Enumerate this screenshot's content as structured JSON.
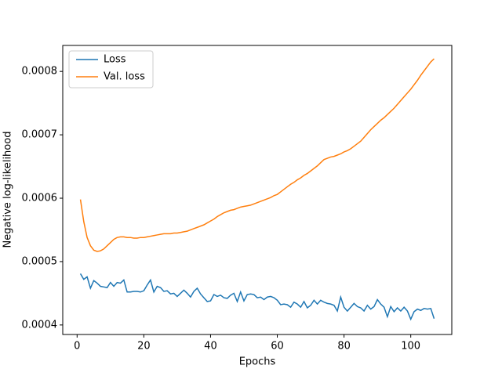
{
  "chart_data": {
    "type": "line",
    "x_label": "Epochs",
    "y_label": "Negative log-likelihood",
    "x": [
      1,
      2,
      3,
      4,
      5,
      6,
      7,
      8,
      9,
      10,
      11,
      12,
      13,
      14,
      15,
      16,
      17,
      18,
      19,
      20,
      21,
      22,
      23,
      24,
      25,
      26,
      27,
      28,
      29,
      30,
      31,
      32,
      33,
      34,
      35,
      36,
      37,
      38,
      39,
      40,
      41,
      42,
      43,
      44,
      45,
      46,
      47,
      48,
      49,
      50,
      51,
      52,
      53,
      54,
      55,
      56,
      57,
      58,
      59,
      60,
      61,
      62,
      63,
      64,
      65,
      66,
      67,
      68,
      69,
      70,
      71,
      72,
      73,
      74,
      75,
      76,
      77,
      78,
      79,
      80,
      81,
      82,
      83,
      84,
      85,
      86,
      87,
      88,
      89,
      90,
      91,
      92,
      93,
      94,
      95,
      96,
      97,
      98,
      99,
      100,
      101,
      102,
      103,
      104,
      105,
      106,
      107
    ],
    "series": [
      {
        "name": "Loss",
        "color": "#1f77b4",
        "values": [
          0.000481,
          0.000472,
          0.000476,
          0.000458,
          0.00047,
          0.000466,
          0.000461,
          0.00046,
          0.000459,
          0.000467,
          0.000461,
          0.000467,
          0.000466,
          0.000471,
          0.000452,
          0.000452,
          0.000453,
          0.000453,
          0.000452,
          0.000454,
          0.000463,
          0.000471,
          0.000452,
          0.000461,
          0.000459,
          0.000453,
          0.000454,
          0.000449,
          0.00045,
          0.000445,
          0.00045,
          0.000455,
          0.00045,
          0.000444,
          0.000453,
          0.000458,
          0.000449,
          0.000443,
          0.000437,
          0.000438,
          0.000448,
          0.000445,
          0.000447,
          0.000443,
          0.000442,
          0.000447,
          0.00045,
          0.000437,
          0.000452,
          0.000438,
          0.000448,
          0.000449,
          0.000448,
          0.000443,
          0.000444,
          0.00044,
          0.000444,
          0.000445,
          0.000443,
          0.000439,
          0.000432,
          0.000433,
          0.000432,
          0.000428,
          0.000436,
          0.000433,
          0.000428,
          0.000437,
          0.000427,
          0.000431,
          0.000439,
          0.000433,
          0.000439,
          0.000436,
          0.000434,
          0.000433,
          0.000431,
          0.000422,
          0.000444,
          0.000428,
          0.000422,
          0.000428,
          0.000434,
          0.000429,
          0.000427,
          0.000422,
          0.000431,
          0.000425,
          0.000429,
          0.00044,
          0.000433,
          0.000428,
          0.000413,
          0.000429,
          0.000421,
          0.000427,
          0.000422,
          0.000428,
          0.000422,
          0.000409,
          0.000421,
          0.000425,
          0.000423,
          0.000426,
          0.000425,
          0.000426,
          0.00041
        ]
      },
      {
        "name": "Val. loss",
        "color": "#ff7f0e",
        "values": [
          0.000598,
          0.000563,
          0.000538,
          0.000525,
          0.000518,
          0.000516,
          0.000517,
          0.00052,
          0.000525,
          0.00053,
          0.000535,
          0.000538,
          0.000539,
          0.000539,
          0.000538,
          0.000538,
          0.000537,
          0.000537,
          0.000538,
          0.000538,
          0.000539,
          0.00054,
          0.000541,
          0.000542,
          0.000543,
          0.000544,
          0.000544,
          0.000544,
          0.000545,
          0.000545,
          0.000546,
          0.000547,
          0.000548,
          0.00055,
          0.000552,
          0.000554,
          0.000556,
          0.000558,
          0.000561,
          0.000564,
          0.000567,
          0.000571,
          0.000574,
          0.000577,
          0.000579,
          0.000581,
          0.000582,
          0.000584,
          0.000586,
          0.000587,
          0.000588,
          0.000589,
          0.000591,
          0.000593,
          0.000595,
          0.000597,
          0.000599,
          0.000601,
          0.000604,
          0.000606,
          0.00061,
          0.000614,
          0.000618,
          0.000622,
          0.000625,
          0.000629,
          0.000632,
          0.000636,
          0.000639,
          0.000643,
          0.000647,
          0.000651,
          0.000656,
          0.000661,
          0.000663,
          0.000665,
          0.000666,
          0.000668,
          0.00067,
          0.000673,
          0.000675,
          0.000678,
          0.000682,
          0.000686,
          0.00069,
          0.000696,
          0.000702,
          0.000708,
          0.000713,
          0.000718,
          0.000723,
          0.000727,
          0.000732,
          0.000737,
          0.000742,
          0.000748,
          0.000754,
          0.00076,
          0.000766,
          0.000772,
          0.000779,
          0.000786,
          0.000794,
          0.000801,
          0.000808,
          0.000815,
          0.00082
        ]
      }
    ],
    "xlim": [
      -4.3,
      112.3
    ],
    "xticks": [
      0,
      20,
      40,
      60,
      80,
      100
    ],
    "ylim": [
      0.000385,
      0.000841
    ],
    "yticks": [
      0.0004,
      0.0005,
      0.0006,
      0.0007,
      0.0008
    ],
    "legend": "upper left",
    "grid": false
  }
}
